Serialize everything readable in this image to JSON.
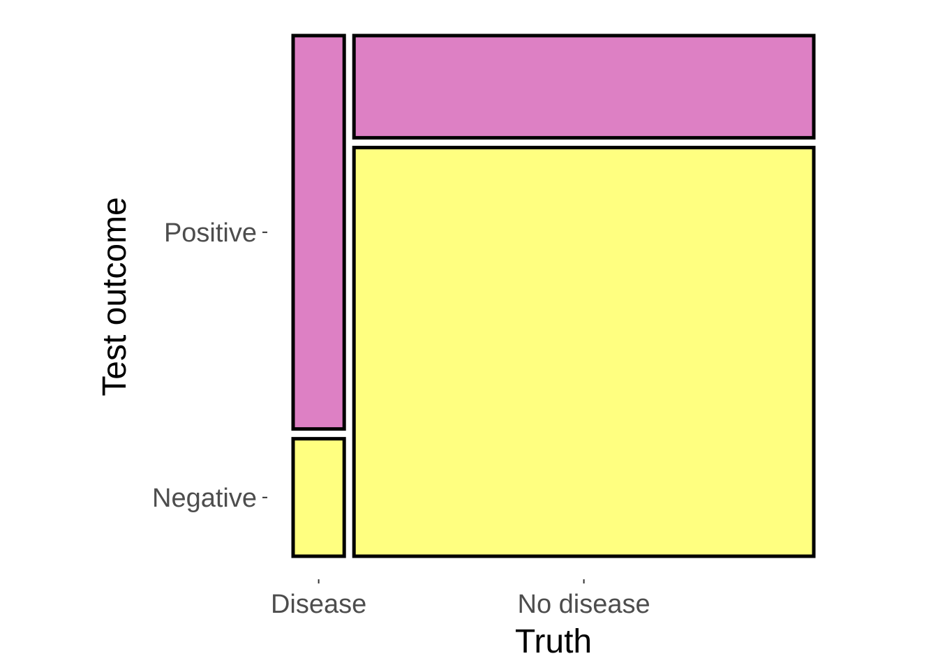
{
  "chart_data": {
    "type": "mosaic",
    "title": "",
    "xlabel": "Truth",
    "ylabel": "Test outcome",
    "x_categories": [
      "Disease",
      "No disease"
    ],
    "y_categories": [
      "Negative",
      "Positive"
    ],
    "x_widths": [
      0.1,
      0.9
    ],
    "cells": [
      {
        "x": "Disease",
        "y": "Negative",
        "fraction": 0.23
      },
      {
        "x": "Disease",
        "y": "Positive",
        "fraction": 0.77
      },
      {
        "x": "No disease",
        "y": "Negative",
        "fraction": 0.8
      },
      {
        "x": "No disease",
        "y": "Positive",
        "fraction": 0.2
      }
    ],
    "colors": {
      "Positive": "#dd80c4",
      "Negative": "#ffff80"
    },
    "grid": false,
    "legend": "none"
  }
}
